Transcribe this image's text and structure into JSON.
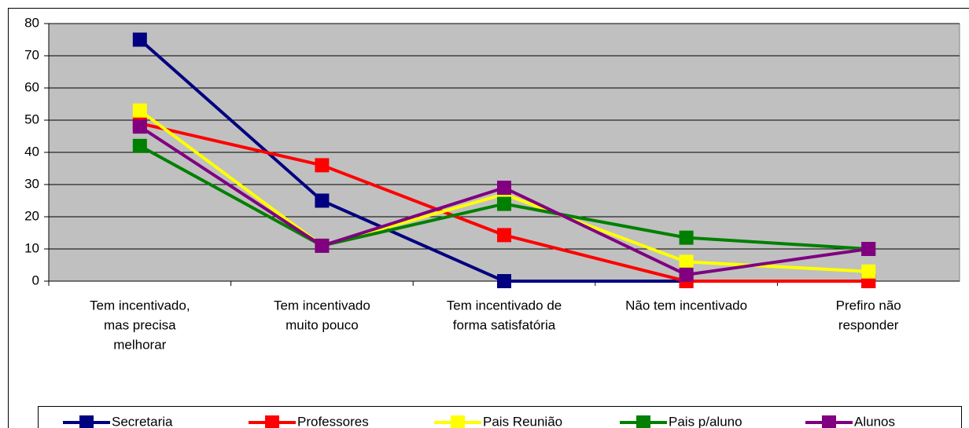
{
  "chart_data": {
    "type": "line",
    "categories": [
      [
        "Tem incentivado,",
        "mas precisa",
        "melhorar"
      ],
      [
        "Tem incentivado",
        "muito pouco"
      ],
      [
        "Tem incentivado de",
        "forma satisfatória"
      ],
      [
        "Não tem incentivado"
      ],
      [
        "Prefiro não",
        "responder"
      ]
    ],
    "series": [
      {
        "name": "Secretaria",
        "color": "#000080",
        "values": [
          75,
          25,
          0,
          0,
          0
        ]
      },
      {
        "name": "Professores",
        "color": "#ff0000",
        "values": [
          49,
          36,
          14.3,
          0,
          0
        ]
      },
      {
        "name": "Pais Reunião",
        "color": "#ffff00",
        "values": [
          53,
          11,
          27,
          6,
          3
        ]
      },
      {
        "name": "Pais p/aluno",
        "color": "#008000",
        "values": [
          42,
          11,
          24,
          13.5,
          10
        ]
      },
      {
        "name": "Alunos",
        "color": "#800080",
        "values": [
          48,
          11,
          29,
          2,
          10
        ]
      }
    ],
    "ylim": [
      0,
      80
    ],
    "yticks": [
      0,
      10,
      20,
      30,
      40,
      50,
      60,
      70,
      80
    ],
    "grid": true,
    "legend": "bottom"
  }
}
